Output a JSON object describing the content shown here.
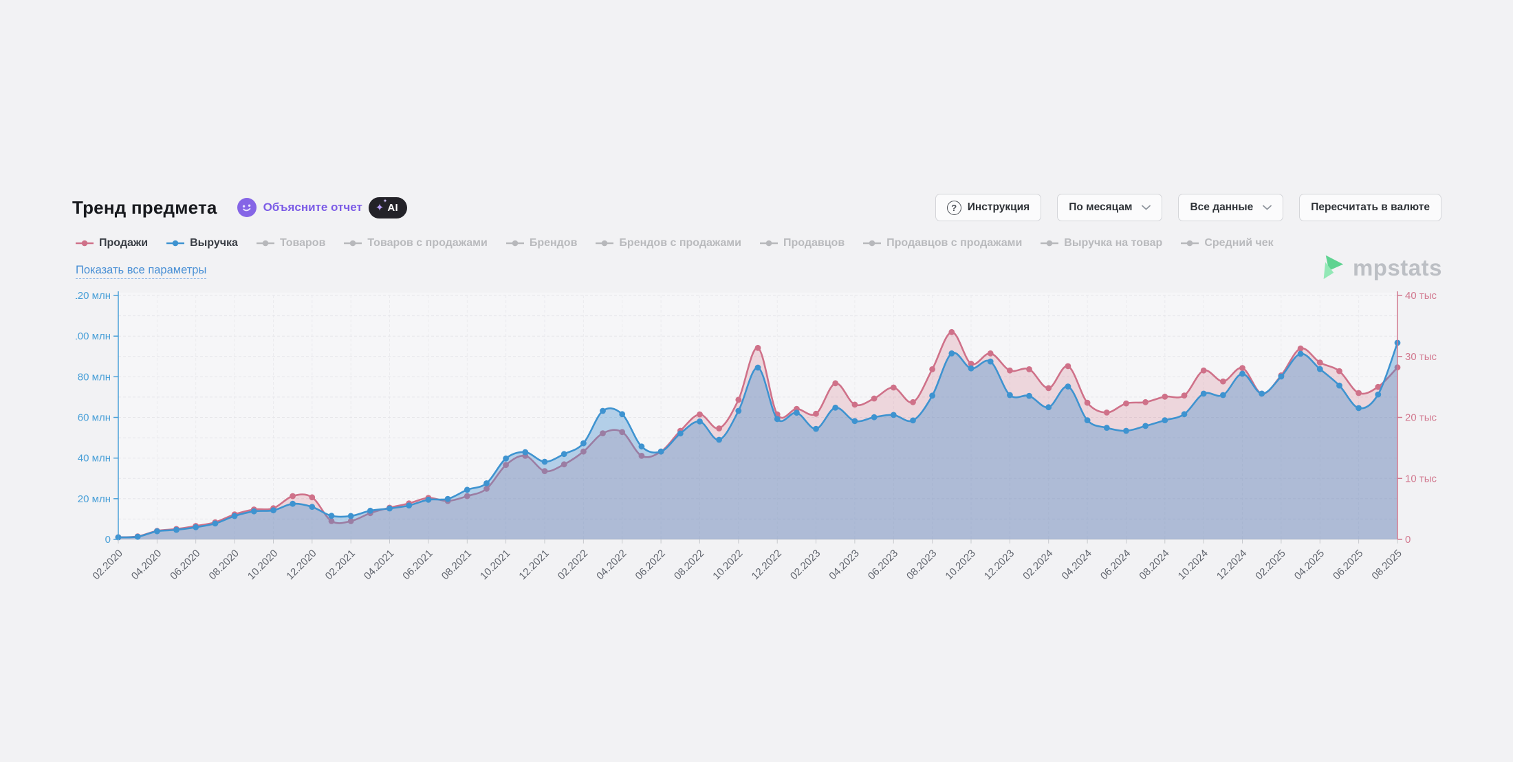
{
  "header": {
    "title": "Тренд предмета",
    "explain_report": "Объясните отчет",
    "ai_badge": "AI"
  },
  "toolbar": {
    "instruction": "Инструкция",
    "period_dropdown": "По месяцам",
    "range_dropdown": "Все данные",
    "currency_button": "Пересчитать в валюте"
  },
  "links": {
    "show_all_params": "Показать все параметры"
  },
  "brand": {
    "logo_text": "mpstats"
  },
  "legend": {
    "items": [
      {
        "label": "Продажи",
        "color": "#cf7189",
        "active": true
      },
      {
        "label": "Выручка",
        "color": "#3e93d0",
        "active": true
      },
      {
        "label": "Товаров",
        "color": "#b7b8bb",
        "active": false
      },
      {
        "label": "Товаров с продажами",
        "color": "#b7b8bb",
        "active": false
      },
      {
        "label": "Брендов",
        "color": "#b7b8bb",
        "active": false
      },
      {
        "label": "Брендов с продажами",
        "color": "#b7b8bb",
        "active": false
      },
      {
        "label": "Продавцов",
        "color": "#b7b8bb",
        "active": false
      },
      {
        "label": "Продавцов с продажами",
        "color": "#b7b8bb",
        "active": false
      },
      {
        "label": "Выручка на товар",
        "color": "#b7b8bb",
        "active": false
      },
      {
        "label": "Средний чек",
        "color": "#b7b8bb",
        "active": false
      }
    ]
  },
  "chart_data": {
    "type": "area",
    "x": [
      "02.2020",
      "03.2020",
      "04.2020",
      "05.2020",
      "06.2020",
      "07.2020",
      "08.2020",
      "09.2020",
      "10.2020",
      "11.2020",
      "12.2020",
      "01.2021",
      "02.2021",
      "03.2021",
      "04.2021",
      "05.2021",
      "06.2021",
      "07.2021",
      "08.2021",
      "09.2021",
      "10.2021",
      "11.2021",
      "12.2021",
      "01.2022",
      "02.2022",
      "03.2022",
      "04.2022",
      "05.2022",
      "06.2022",
      "07.2022",
      "08.2022",
      "09.2022",
      "10.2022",
      "11.2022",
      "12.2022",
      "01.2023",
      "02.2023",
      "03.2023",
      "04.2023",
      "05.2023",
      "06.2023",
      "07.2023",
      "08.2023",
      "09.2023",
      "10.2023",
      "11.2023",
      "12.2023",
      "01.2024",
      "02.2024",
      "03.2024",
      "04.2024",
      "05.2024",
      "06.2024",
      "07.2024",
      "08.2024",
      "09.2024",
      "10.2024",
      "11.2024",
      "12.2024",
      "01.2025",
      "02.2025",
      "03.2025",
      "04.2025",
      "05.2025",
      "06.2025",
      "07.2025",
      "08.2025"
    ],
    "x_tick_every": 2,
    "series": [
      {
        "name": "Продажи",
        "axis": "right",
        "unit": "тыс",
        "color": "#cf7189",
        "fill": "rgba(203,100,125,0.22)",
        "values": [
          0.35,
          0.5,
          1.4,
          1.7,
          2.2,
          2.8,
          4.1,
          4.9,
          5.1,
          7.1,
          6.9,
          3.0,
          3.0,
          4.3,
          5.2,
          5.9,
          6.8,
          6.3,
          7.1,
          8.3,
          12.2,
          13.7,
          11.2,
          12.3,
          14.4,
          17.4,
          17.6,
          13.7,
          14.4,
          17.8,
          20.5,
          18.2,
          22.9,
          31.4,
          20.5,
          21.4,
          20.6,
          25.6,
          22.1,
          23.1,
          24.9,
          22.5,
          27.9,
          34.0,
          28.8,
          30.5,
          27.7,
          27.9,
          24.8,
          28.4,
          22.4,
          20.8,
          22.3,
          22.5,
          23.4,
          23.6,
          27.7,
          25.9,
          28.1,
          23.9,
          26.9,
          31.3,
          29.0,
          27.6,
          24.0,
          25.0,
          28.2
        ]
      },
      {
        "name": "Выручка",
        "axis": "left",
        "unit": "млн",
        "color": "#3e93d0",
        "fill": "rgba(70,145,205,0.38)",
        "values": [
          1.0,
          1.3,
          4.0,
          4.7,
          6.0,
          7.8,
          11.5,
          13.8,
          14.3,
          17.5,
          16.0,
          11.6,
          11.5,
          14.1,
          15.2,
          16.7,
          19.5,
          19.9,
          24.4,
          27.6,
          39.8,
          42.9,
          38.2,
          42.0,
          47.3,
          63.2,
          61.6,
          45.7,
          43.2,
          52.1,
          58.0,
          49.0,
          63.2,
          84.5,
          59.2,
          62.3,
          54.4,
          64.8,
          58.2,
          60.1,
          61.2,
          58.5,
          70.7,
          91.5,
          84.1,
          87.5,
          71.0,
          70.6,
          65.0,
          75.2,
          58.6,
          54.9,
          53.4,
          55.8,
          58.6,
          61.6,
          71.7,
          71.0,
          81.5,
          71.7,
          80.1,
          91.3,
          83.8,
          75.7,
          64.6,
          71.3,
          96.7
        ]
      }
    ],
    "axes": {
      "left": {
        "min": 0,
        "max": 120,
        "step": 20,
        "suffix": " млн",
        "color": "#4aa0d8"
      },
      "right": {
        "min": 0,
        "max": 40,
        "step": 10,
        "suffix": " тыс",
        "color": "#d2798f"
      }
    },
    "grid": {
      "horizontal_minor_step_left": 10,
      "vertical_every_months": 2,
      "dashed": true
    },
    "legend_position": "top-left"
  }
}
